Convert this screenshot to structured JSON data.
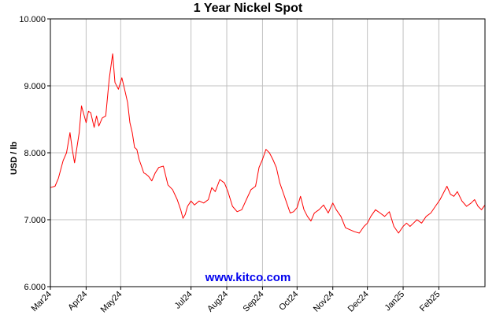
{
  "chart_data": {
    "type": "line",
    "title": "1 Year Nickel Spot",
    "ylabel": "USD / lb",
    "xlabel": "",
    "ylim": [
      6.0,
      10.0
    ],
    "y_ticks": [
      "6.000",
      "7.000",
      "8.000",
      "9.000",
      "10.000"
    ],
    "x_ticks": [
      "Mar24",
      "Apr24",
      "May24",
      "Jul24",
      "Aug24",
      "Sep24",
      "Oct24",
      "Nov24",
      "Dec24",
      "Jan25",
      "Feb25"
    ],
    "x_tick_dates": [
      "2024-03-01",
      "2024-04-01",
      "2024-05-01",
      "2024-07-01",
      "2024-08-01",
      "2024-09-01",
      "2024-10-01",
      "2024-11-01",
      "2024-12-01",
      "2025-01-01",
      "2025-02-01"
    ],
    "xlim": [
      "2024-03-01",
      "2025-03-13"
    ],
    "grid": true,
    "series_color": "#ff0000",
    "watermark": "www.kitco.com",
    "series": [
      {
        "x": [
          "2024-03-01",
          "2024-03-05",
          "2024-03-08",
          "2024-03-12",
          "2024-03-15",
          "2024-03-18",
          "2024-03-20",
          "2024-03-22",
          "2024-03-26",
          "2024-03-28",
          "2024-04-01",
          "2024-04-03",
          "2024-04-05",
          "2024-04-08",
          "2024-04-10",
          "2024-04-12",
          "2024-04-15",
          "2024-04-18",
          "2024-04-21",
          "2024-04-24",
          "2024-04-26",
          "2024-04-29",
          "2024-05-02",
          "2024-05-05",
          "2024-05-07",
          "2024-05-09",
          "2024-05-11",
          "2024-05-13",
          "2024-05-15",
          "2024-05-17",
          "2024-05-19",
          "2024-05-21",
          "2024-05-23",
          "2024-05-25",
          "2024-05-28",
          "2024-05-31",
          "2024-06-03",
          "2024-06-07",
          "2024-06-11",
          "2024-06-15",
          "2024-06-19",
          "2024-06-22",
          "2024-06-24",
          "2024-06-26",
          "2024-06-28",
          "2024-07-01",
          "2024-07-04",
          "2024-07-08",
          "2024-07-12",
          "2024-07-16",
          "2024-07-19",
          "2024-07-22",
          "2024-07-26",
          "2024-07-30",
          "2024-08-02",
          "2024-08-06",
          "2024-08-10",
          "2024-08-14",
          "2024-08-18",
          "2024-08-22",
          "2024-08-26",
          "2024-08-29",
          "2024-09-01",
          "2024-09-04",
          "2024-09-07",
          "2024-09-10",
          "2024-09-13",
          "2024-09-16",
          "2024-09-19",
          "2024-09-22",
          "2024-09-25",
          "2024-09-28",
          "2024-10-01",
          "2024-10-04",
          "2024-10-07",
          "2024-10-10",
          "2024-10-13",
          "2024-10-16",
          "2024-10-20",
          "2024-10-24",
          "2024-10-28",
          "2024-11-01",
          "2024-11-04",
          "2024-11-08",
          "2024-11-12",
          "2024-11-16",
          "2024-11-20",
          "2024-11-24",
          "2024-11-28",
          "2024-12-01",
          "2024-12-04",
          "2024-12-08",
          "2024-12-12",
          "2024-12-16",
          "2024-12-20",
          "2024-12-24",
          "2024-12-28",
          "2025-01-01",
          "2025-01-04",
          "2025-01-07",
          "2025-01-10",
          "2025-01-13",
          "2025-01-17",
          "2025-01-21",
          "2025-01-25",
          "2025-01-29",
          "2025-02-02",
          "2025-02-05",
          "2025-02-08",
          "2025-02-11",
          "2025-02-14",
          "2025-02-17",
          "2025-02-21",
          "2025-02-25",
          "2025-03-01",
          "2025-03-04",
          "2025-03-07",
          "2025-03-10",
          "2025-03-13"
        ],
        "values": [
          7.48,
          7.5,
          7.62,
          7.88,
          8.0,
          8.3,
          8.05,
          7.85,
          8.3,
          8.7,
          8.45,
          8.62,
          8.6,
          8.38,
          8.55,
          8.4,
          8.52,
          8.55,
          9.1,
          9.48,
          9.05,
          8.95,
          9.12,
          8.9,
          8.75,
          8.45,
          8.3,
          8.08,
          8.05,
          7.9,
          7.8,
          7.7,
          7.68,
          7.65,
          7.58,
          7.7,
          7.78,
          7.8,
          7.52,
          7.45,
          7.3,
          7.15,
          7.02,
          7.08,
          7.2,
          7.28,
          7.22,
          7.28,
          7.25,
          7.3,
          7.48,
          7.42,
          7.6,
          7.55,
          7.42,
          7.2,
          7.12,
          7.15,
          7.3,
          7.45,
          7.5,
          7.78,
          7.9,
          8.05,
          8.0,
          7.9,
          7.78,
          7.55,
          7.4,
          7.25,
          7.1,
          7.12,
          7.18,
          7.35,
          7.15,
          7.05,
          6.98,
          7.1,
          7.15,
          7.22,
          7.1,
          7.25,
          7.15,
          7.05,
          6.88,
          6.85,
          6.82,
          6.8,
          6.9,
          6.95,
          7.05,
          7.15,
          7.1,
          7.05,
          7.12,
          6.9,
          6.8,
          6.9,
          6.95,
          6.9,
          6.95,
          7.0,
          6.95,
          7.05,
          7.1,
          7.2,
          7.3,
          7.4,
          7.5,
          7.38,
          7.35,
          7.42,
          7.28,
          7.2,
          7.25,
          7.3,
          7.2,
          7.15,
          7.22
        ]
      }
    ]
  }
}
